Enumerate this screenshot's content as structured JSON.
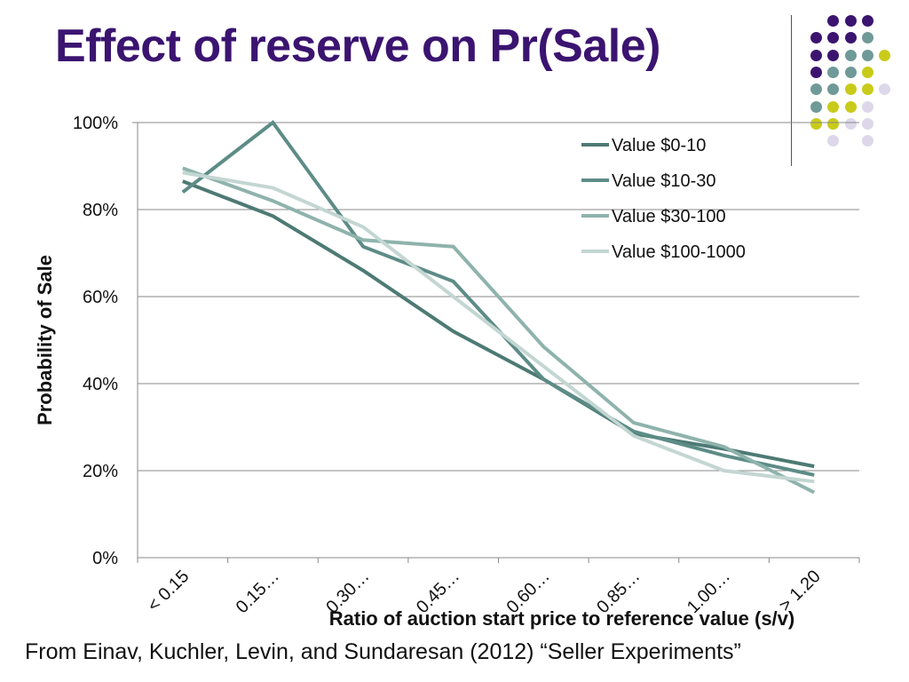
{
  "slide": {
    "title": "Effect of reserve on Pr(Sale)",
    "caption": "From Einav, Kuchler, Levin, and Sundaresan (2012) “Seller Experiments”",
    "colors": {
      "title": "#3b1470",
      "decor_dots": [
        "#3b1470",
        "#6f9a97",
        "#c9cb1a",
        "#dcd8ea"
      ]
    }
  },
  "chart_data": {
    "type": "line",
    "title": "",
    "xlabel": "Ratio of auction start price to reference value (s/v)",
    "ylabel": "Probability of Sale",
    "categories": [
      "< 0.15",
      "0.15…",
      "0.30…",
      "0.45…",
      "0.60…",
      "0.85…",
      "1.00…",
      "> 1.20"
    ],
    "ylim": [
      0,
      1
    ],
    "yticks": [
      "0%",
      "20%",
      "40%",
      "60%",
      "80%",
      "100%"
    ],
    "grid": true,
    "legend_position": "top-right",
    "series": [
      {
        "name": "Value $0-10",
        "color": "#4d7a74",
        "values": [
          0.865,
          0.785,
          0.66,
          0.52,
          0.41,
          0.285,
          0.25,
          0.21
        ]
      },
      {
        "name": "Value $10-30",
        "color": "#5d8c87",
        "values": [
          0.84,
          1.0,
          0.715,
          0.635,
          0.41,
          0.29,
          0.235,
          0.19
        ]
      },
      {
        "name": "Value $30-100",
        "color": "#8eb3ac",
        "values": [
          0.895,
          0.82,
          0.73,
          0.715,
          0.485,
          0.31,
          0.255,
          0.15
        ]
      },
      {
        "name": "Value $100-1000",
        "color": "#c3d6d2",
        "values": [
          0.885,
          0.85,
          0.76,
          0.6,
          0.44,
          0.28,
          0.2,
          0.175
        ]
      }
    ]
  }
}
